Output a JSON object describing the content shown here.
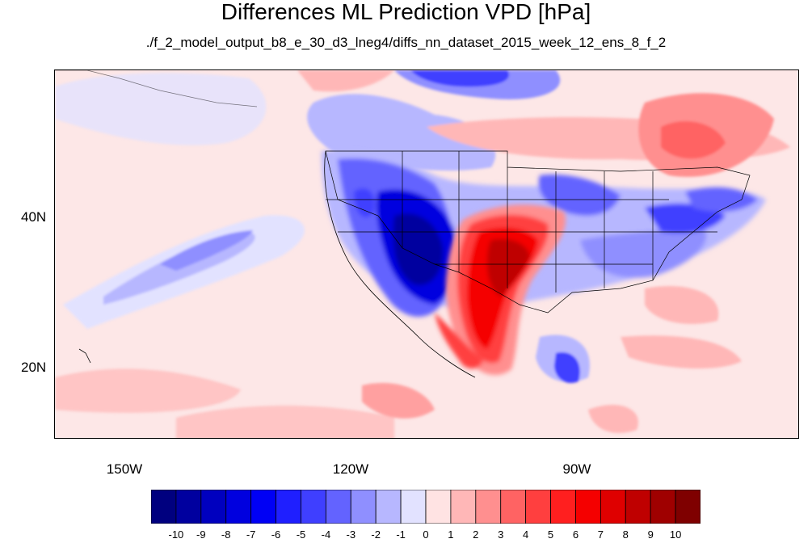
{
  "title": "Differences ML Prediction VPD [hPa]",
  "subtitle": "./f_2_model_output_b8_e_30_d3_lneg4/diffs_nn_dataset_2015_week_12_ens_8_f_2",
  "lat_labels": [
    "40N",
    "20N"
  ],
  "lon_labels": [
    "150W",
    "120W",
    "90W"
  ],
  "colorbar": {
    "labels": [
      "-10",
      "-9",
      "-8",
      "-7",
      "-6",
      "-5",
      "-4",
      "-3",
      "-2",
      "-1",
      "0",
      "1",
      "2",
      "3",
      "4",
      "5",
      "6",
      "7",
      "8",
      "9",
      "10"
    ],
    "colors": [
      "#00007f",
      "#00009f",
      "#0000bf",
      "#0000df",
      "#0000f5",
      "#1f1fff",
      "#3f3fff",
      "#6363ff",
      "#8f8fff",
      "#b7b7ff",
      "#e2e2ff",
      "#ffe3e3",
      "#ffb7b7",
      "#ff8f8f",
      "#ff6363",
      "#ff3f3f",
      "#ff1f1f",
      "#f50000",
      "#df0000",
      "#bf0000",
      "#9f0000",
      "#7f0000"
    ]
  },
  "map": {
    "extent": {
      "lon": [
        -160,
        -58
      ],
      "lat": [
        10,
        60
      ]
    },
    "background_color": "#fde7e7",
    "field_description": "VPD difference field"
  }
}
